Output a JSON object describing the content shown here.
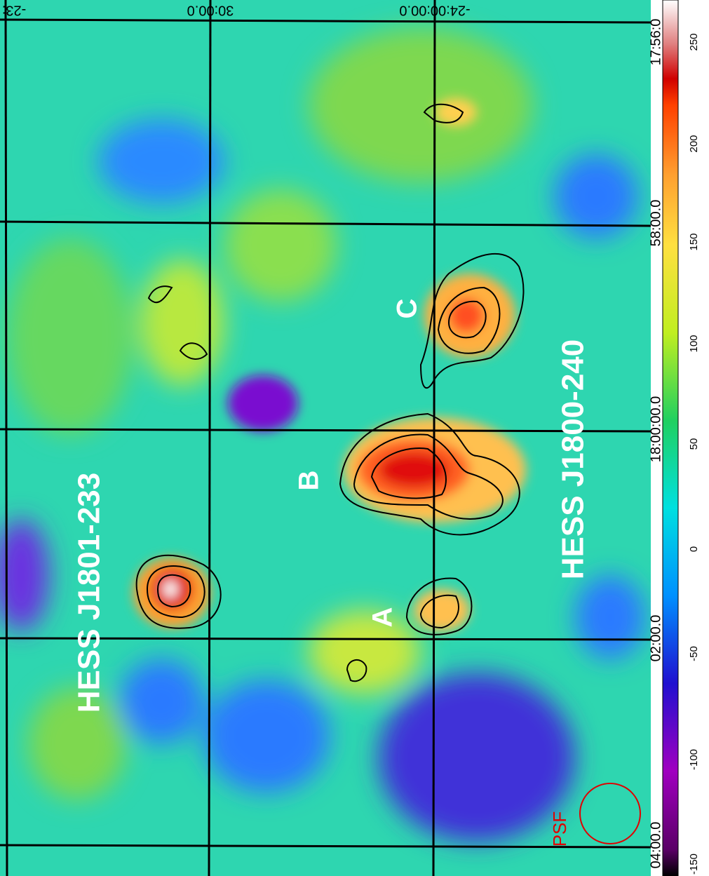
{
  "map": {
    "dec_labels": [
      "-23:",
      "30:00.0",
      "-24:00:00.0"
    ],
    "ra_labels": [
      "17:56:0",
      "58:00.0",
      "18:00:00.0",
      "02:00.0",
      "04:00.0"
    ],
    "sources": [
      "HESS J1801-233",
      "HESS J1800-240"
    ],
    "components": [
      "A",
      "B",
      "C"
    ],
    "psf_label": "PSF",
    "colorbar_ticks": [
      "-150",
      "-100",
      "-50",
      "0",
      "50",
      "100",
      "150",
      "200",
      "250"
    ]
  }
}
